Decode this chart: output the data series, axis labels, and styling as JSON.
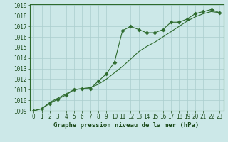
{
  "line1_x": [
    0,
    1,
    2,
    3,
    4,
    5,
    6,
    7,
    8,
    9,
    10,
    11,
    12,
    13,
    14,
    15,
    16,
    17,
    18,
    19,
    20,
    21,
    22,
    23
  ],
  "line1_y": [
    1009.0,
    1009.2,
    1009.7,
    1010.1,
    1010.5,
    1011.0,
    1011.1,
    1011.1,
    1011.8,
    1012.5,
    1013.6,
    1016.6,
    1017.0,
    1016.7,
    1016.4,
    1016.4,
    1016.7,
    1017.4,
    1017.4,
    1017.7,
    1018.2,
    1018.4,
    1018.6,
    1018.3
  ],
  "line2_x": [
    0,
    1,
    2,
    3,
    4,
    5,
    6,
    7,
    8,
    9,
    10,
    11,
    12,
    13,
    14,
    15,
    16,
    17,
    18,
    19,
    20,
    21,
    22,
    23
  ],
  "line2_y": [
    1009.0,
    1009.2,
    1009.8,
    1010.2,
    1010.6,
    1011.0,
    1011.1,
    1011.2,
    1011.5,
    1012.0,
    1012.6,
    1013.2,
    1013.9,
    1014.6,
    1015.1,
    1015.5,
    1016.0,
    1016.5,
    1017.0,
    1017.5,
    1017.9,
    1018.2,
    1018.4,
    1018.3
  ],
  "line_color": "#2d6a2d",
  "marker": "D",
  "markersize": 2.5,
  "xlabel": "Graphe pression niveau de la mer (hPa)",
  "xlim_min": -0.5,
  "xlim_max": 23.5,
  "ylim_min": 1009,
  "ylim_max": 1019,
  "yticks": [
    1009,
    1010,
    1011,
    1012,
    1013,
    1014,
    1015,
    1016,
    1017,
    1018,
    1019
  ],
  "xticks": [
    0,
    1,
    2,
    3,
    4,
    5,
    6,
    7,
    8,
    9,
    10,
    11,
    12,
    13,
    14,
    15,
    16,
    17,
    18,
    19,
    20,
    21,
    22,
    23
  ],
  "bg_color": "#cce8e8",
  "grid_color": "#aacece",
  "text_color": "#1a4a1a",
  "border_color": "#2d6a2d",
  "linewidth": 0.8,
  "xlabel_fontsize": 6.5,
  "tick_fontsize": 5.5
}
